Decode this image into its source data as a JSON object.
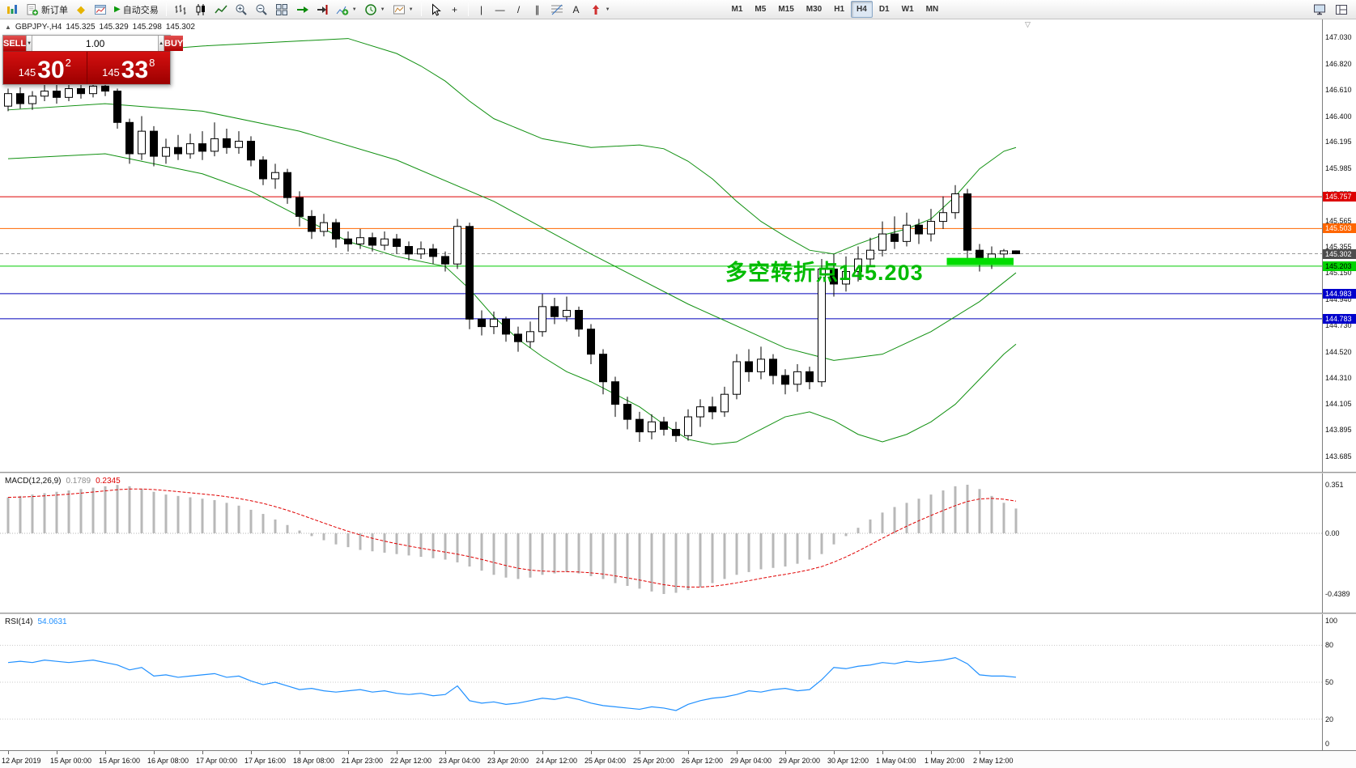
{
  "icons": {
    "oct_toggle": "▲",
    "metaeditor": "◆",
    "autoplay": "▶",
    "crosshair": "+",
    "vline": "|",
    "hline": "—",
    "trendline": "/",
    "channel": "∥",
    "text_tool": "A",
    "caret": "▼",
    "shift_marker": "▽",
    "vol_up": "▲",
    "vol_down": "▼"
  },
  "toolbar": {
    "new_order_label": "新订单",
    "autotrading_label": "自动交易",
    "timeframes": [
      "M1",
      "M5",
      "M15",
      "M30",
      "H1",
      "H4",
      "D1",
      "W1",
      "MN"
    ],
    "active_timeframe": "H4"
  },
  "oct": {
    "sell_label": "SELL",
    "buy_label": "BUY",
    "volume": "1.00",
    "sell_price_prefix": "145",
    "sell_price_big": "30",
    "sell_price_sup": "2",
    "buy_price_prefix": "145",
    "buy_price_big": "33",
    "buy_price_sup": "8"
  },
  "chart_info": {
    "symbol": "GBPJPY-,H4",
    "open": "145.325",
    "high": "145.329",
    "low": "145.298",
    "close": "145.302"
  },
  "chart_data": {
    "type": "candlestick",
    "title": "GBPJPY H4",
    "symbol": "GBPJPY",
    "timeframe": "H4",
    "price_axis_labels": [
      "147.030",
      "146.820",
      "146.610",
      "146.400",
      "146.195",
      "145.985",
      "145.775",
      "145.565",
      "145.355",
      "145.150",
      "144.940",
      "144.730",
      "144.520",
      "144.310",
      "144.105",
      "143.895",
      "143.685"
    ],
    "time_axis_labels": [
      "12 Apr 2019",
      "15 Apr 00:00",
      "15 Apr 16:00",
      "16 Apr 08:00",
      "17 Apr 00:00",
      "17 Apr 16:00",
      "18 Apr 08:00",
      "21 Apr 23:00",
      "22 Apr 12:00",
      "23 Apr 04:00",
      "23 Apr 20:00",
      "24 Apr 12:00",
      "25 Apr 04:00",
      "25 Apr 20:00",
      "26 Apr 12:00",
      "29 Apr 04:00",
      "29 Apr 20:00",
      "30 Apr 12:00",
      "1 May 04:00",
      "1 May 20:00",
      "2 May 12:00"
    ],
    "candles": [
      [
        146.48,
        146.62,
        146.44,
        146.58
      ],
      [
        146.58,
        146.63,
        146.46,
        146.5
      ],
      [
        146.5,
        146.6,
        146.45,
        146.56
      ],
      [
        146.56,
        146.65,
        146.52,
        146.6
      ],
      [
        146.6,
        146.66,
        146.5,
        146.55
      ],
      [
        146.55,
        146.68,
        146.52,
        146.62
      ],
      [
        146.62,
        146.7,
        146.54,
        146.58
      ],
      [
        146.58,
        146.72,
        146.55,
        146.64
      ],
      [
        146.64,
        146.75,
        146.56,
        146.6
      ],
      [
        146.6,
        146.62,
        146.3,
        146.35
      ],
      [
        146.35,
        146.38,
        146.02,
        146.1
      ],
      [
        146.1,
        146.4,
        146.05,
        146.28
      ],
      [
        146.28,
        146.32,
        146.0,
        146.08
      ],
      [
        146.08,
        146.22,
        146.02,
        146.15
      ],
      [
        146.15,
        146.25,
        146.05,
        146.1
      ],
      [
        146.1,
        146.26,
        146.06,
        146.18
      ],
      [
        146.18,
        146.28,
        146.05,
        146.12
      ],
      [
        146.12,
        146.35,
        146.08,
        146.22
      ],
      [
        146.22,
        146.3,
        146.1,
        146.15
      ],
      [
        146.15,
        146.28,
        146.1,
        146.2
      ],
      [
        146.2,
        146.24,
        146.0,
        146.05
      ],
      [
        146.05,
        146.08,
        145.85,
        145.9
      ],
      [
        145.9,
        146.02,
        145.82,
        145.95
      ],
      [
        145.95,
        145.98,
        145.7,
        145.75
      ],
      [
        145.75,
        145.8,
        145.52,
        145.6
      ],
      [
        145.6,
        145.65,
        145.42,
        145.48
      ],
      [
        145.48,
        145.62,
        145.44,
        145.55
      ],
      [
        145.55,
        145.58,
        145.35,
        145.42
      ],
      [
        145.42,
        145.48,
        145.32,
        145.38
      ],
      [
        145.38,
        145.5,
        145.34,
        145.43
      ],
      [
        145.43,
        145.47,
        145.32,
        145.37
      ],
      [
        145.37,
        145.48,
        145.33,
        145.42
      ],
      [
        145.42,
        145.46,
        145.3,
        145.36
      ],
      [
        145.36,
        145.4,
        145.25,
        145.3
      ],
      [
        145.3,
        145.4,
        145.26,
        145.34
      ],
      [
        145.34,
        145.38,
        145.22,
        145.28
      ],
      [
        145.28,
        145.32,
        145.16,
        145.22
      ],
      [
        145.22,
        145.58,
        145.18,
        145.52
      ],
      [
        145.52,
        145.55,
        144.7,
        144.78
      ],
      [
        144.78,
        144.85,
        144.65,
        144.72
      ],
      [
        144.72,
        144.84,
        144.66,
        144.78
      ],
      [
        144.78,
        144.8,
        144.6,
        144.66
      ],
      [
        144.66,
        144.72,
        144.52,
        144.6
      ],
      [
        144.6,
        144.76,
        144.55,
        144.68
      ],
      [
        144.68,
        144.98,
        144.64,
        144.88
      ],
      [
        144.88,
        144.95,
        144.74,
        144.8
      ],
      [
        144.8,
        144.96,
        144.76,
        144.85
      ],
      [
        144.85,
        144.88,
        144.64,
        144.7
      ],
      [
        144.7,
        144.74,
        144.42,
        144.5
      ],
      [
        144.5,
        144.54,
        144.18,
        144.28
      ],
      [
        144.28,
        144.32,
        144.0,
        144.1
      ],
      [
        144.1,
        144.16,
        143.9,
        143.98
      ],
      [
        143.98,
        144.04,
        143.8,
        143.88
      ],
      [
        143.88,
        144.02,
        143.82,
        143.96
      ],
      [
        143.96,
        144.0,
        143.85,
        143.9
      ],
      [
        143.9,
        143.96,
        143.8,
        143.85
      ],
      [
        143.85,
        144.06,
        143.81,
        144.0
      ],
      [
        144.0,
        144.14,
        143.92,
        144.08
      ],
      [
        144.08,
        144.16,
        143.98,
        144.04
      ],
      [
        144.04,
        144.24,
        144.0,
        144.18
      ],
      [
        144.18,
        144.5,
        144.14,
        144.44
      ],
      [
        144.44,
        144.54,
        144.28,
        144.36
      ],
      [
        144.36,
        144.56,
        144.3,
        144.46
      ],
      [
        144.46,
        144.5,
        144.26,
        144.33
      ],
      [
        144.33,
        144.38,
        144.18,
        144.26
      ],
      [
        144.26,
        144.42,
        144.2,
        144.36
      ],
      [
        144.36,
        144.4,
        144.22,
        144.28
      ],
      [
        144.28,
        145.26,
        144.24,
        145.18
      ],
      [
        145.18,
        145.3,
        144.96,
        145.06
      ],
      [
        145.06,
        145.28,
        145.0,
        145.16
      ],
      [
        145.16,
        145.36,
        145.08,
        145.26
      ],
      [
        145.26,
        145.43,
        145.2,
        145.33
      ],
      [
        145.33,
        145.56,
        145.28,
        145.46
      ],
      [
        145.46,
        145.6,
        145.34,
        145.4
      ],
      [
        145.4,
        145.63,
        145.36,
        145.53
      ],
      [
        145.53,
        145.58,
        145.38,
        145.46
      ],
      [
        145.46,
        145.66,
        145.4,
        145.56
      ],
      [
        145.56,
        145.76,
        145.5,
        145.63
      ],
      [
        145.63,
        145.85,
        145.58,
        145.78
      ],
      [
        145.78,
        145.82,
        145.26,
        145.33
      ],
      [
        145.33,
        145.38,
        145.16,
        145.23
      ],
      [
        145.23,
        145.36,
        145.18,
        145.3
      ],
      [
        145.3,
        145.34,
        145.22,
        145.325
      ],
      [
        145.325,
        145.329,
        145.298,
        145.302
      ]
    ],
    "bollinger": {
      "upper": [
        [
          0,
          146.82
        ],
        [
          8,
          146.9
        ],
        [
          16,
          146.96
        ],
        [
          24,
          147.0
        ],
        [
          28,
          147.02
        ],
        [
          32,
          146.9
        ],
        [
          34,
          146.8
        ],
        [
          36,
          146.68
        ],
        [
          38,
          146.52
        ],
        [
          40,
          146.38
        ],
        [
          44,
          146.22
        ],
        [
          48,
          146.15
        ],
        [
          52,
          146.17
        ],
        [
          54,
          146.14
        ],
        [
          56,
          146.04
        ],
        [
          58,
          145.9
        ],
        [
          60,
          145.72
        ],
        [
          62,
          145.56
        ],
        [
          64,
          145.44
        ],
        [
          66,
          145.33
        ],
        [
          68,
          145.3
        ],
        [
          70,
          145.38
        ],
        [
          72,
          145.45
        ],
        [
          74,
          145.5
        ],
        [
          76,
          145.58
        ],
        [
          78,
          145.76
        ],
        [
          80,
          145.98
        ],
        [
          82,
          146.12
        ],
        [
          83,
          146.15
        ]
      ],
      "middle": [
        [
          0,
          146.45
        ],
        [
          8,
          146.5
        ],
        [
          16,
          146.44
        ],
        [
          24,
          146.28
        ],
        [
          32,
          146.05
        ],
        [
          40,
          145.72
        ],
        [
          48,
          145.3
        ],
        [
          56,
          144.9
        ],
        [
          64,
          144.55
        ],
        [
          68,
          144.45
        ],
        [
          72,
          144.5
        ],
        [
          76,
          144.68
        ],
        [
          80,
          144.92
        ],
        [
          83,
          145.15
        ]
      ],
      "lower": [
        [
          0,
          146.06
        ],
        [
          8,
          146.1
        ],
        [
          16,
          145.94
        ],
        [
          20,
          145.8
        ],
        [
          24,
          145.6
        ],
        [
          28,
          145.4
        ],
        [
          32,
          145.28
        ],
        [
          36,
          145.2
        ],
        [
          38,
          145.02
        ],
        [
          40,
          144.8
        ],
        [
          42,
          144.62
        ],
        [
          44,
          144.48
        ],
        [
          46,
          144.36
        ],
        [
          48,
          144.28
        ],
        [
          50,
          144.18
        ],
        [
          52,
          144.08
        ],
        [
          54,
          143.94
        ],
        [
          56,
          143.82
        ],
        [
          58,
          143.78
        ],
        [
          60,
          143.8
        ],
        [
          62,
          143.9
        ],
        [
          64,
          144.0
        ],
        [
          66,
          144.04
        ],
        [
          68,
          143.97
        ],
        [
          70,
          143.86
        ],
        [
          72,
          143.8
        ],
        [
          74,
          143.86
        ],
        [
          76,
          143.96
        ],
        [
          78,
          144.1
        ],
        [
          80,
          144.3
        ],
        [
          82,
          144.5
        ],
        [
          83,
          144.58
        ]
      ]
    },
    "hlines": [
      {
        "price": 145.757,
        "label": "145.757",
        "color": "#dd0000",
        "tag_bg": "#dd0000",
        "tag_fg": "#ffffff",
        "style": "solid"
      },
      {
        "price": 145.503,
        "label": "145.503",
        "color": "#ff6600",
        "tag_bg": "#ff6600",
        "tag_fg": "#ffffff",
        "style": "solid"
      },
      {
        "price": 145.302,
        "label": "145.302",
        "color": "#9a9a9a",
        "tag_bg": "#4d4d4d",
        "tag_fg": "#ffffff",
        "style": "dashed"
      },
      {
        "price": 145.203,
        "label": "145.203",
        "color": "#00cc00",
        "tag_bg": "#00d300",
        "tag_fg": "#000000",
        "style": "solid"
      },
      {
        "price": 144.983,
        "label": "144.983",
        "color": "#0000bb",
        "tag_bg": "#0000cc",
        "tag_fg": "#ffffff",
        "style": "solid"
      },
      {
        "price": 144.783,
        "label": "144.783",
        "color": "#0000bb",
        "tag_bg": "#0000cc",
        "tag_fg": "#ffffff",
        "style": "solid"
      }
    ],
    "trend_highlight": {
      "price": 145.24,
      "from_index": 77.3,
      "to_index": 82.8,
      "color": "#00dd00",
      "thickness": 9
    },
    "annotation": {
      "text": "多空转折点145.203",
      "color": "#00bb00"
    },
    "macd": {
      "name": "MACD(12,26,9)",
      "value_main": "0.1789",
      "value_signal": "0.2345",
      "scale": [
        {
          "label": "0.351",
          "value": 0.351
        },
        {
          "label": "0.00",
          "value": 0
        },
        {
          "label": "-0.4389",
          "value": -0.4389
        }
      ],
      "values": [
        0.26,
        0.27,
        0.28,
        0.29,
        0.3,
        0.31,
        0.32,
        0.33,
        0.34,
        0.35,
        0.34,
        0.32,
        0.3,
        0.28,
        0.27,
        0.26,
        0.25,
        0.24,
        0.22,
        0.2,
        0.17,
        0.14,
        0.1,
        0.06,
        0.02,
        -0.02,
        -0.05,
        -0.08,
        -0.1,
        -0.12,
        -0.13,
        -0.14,
        -0.15,
        -0.16,
        -0.17,
        -0.18,
        -0.19,
        -0.21,
        -0.24,
        -0.27,
        -0.3,
        -0.32,
        -0.33,
        -0.32,
        -0.3,
        -0.29,
        -0.28,
        -0.29,
        -0.31,
        -0.33,
        -0.36,
        -0.38,
        -0.4,
        -0.42,
        -0.4389,
        -0.43,
        -0.41,
        -0.39,
        -0.36,
        -0.33,
        -0.3,
        -0.28,
        -0.26,
        -0.25,
        -0.24,
        -0.22,
        -0.19,
        -0.15,
        -0.08,
        -0.02,
        0.04,
        0.1,
        0.15,
        0.19,
        0.22,
        0.25,
        0.28,
        0.31,
        0.34,
        0.351,
        0.32,
        0.27,
        0.22,
        0.1789
      ]
    },
    "rsi": {
      "name": "RSI(14)",
      "value": "54.0631",
      "scale": [
        {
          "label": "100",
          "value": 100
        },
        {
          "label": "80",
          "value": 80
        },
        {
          "label": "50",
          "value": 50
        },
        {
          "label": "20",
          "value": 20
        },
        {
          "label": "0",
          "value": 0
        }
      ],
      "levels": [
        80,
        50,
        20
      ],
      "values": [
        66,
        67,
        66,
        68,
        67,
        66,
        67,
        68,
        66,
        64,
        60,
        62,
        55,
        56,
        54,
        55,
        56,
        57,
        54,
        55,
        51,
        48,
        50,
        47,
        44,
        45,
        43,
        42,
        43,
        44,
        42,
        43,
        41,
        40,
        41,
        39,
        40,
        47,
        35,
        33,
        34,
        32,
        33,
        35,
        37,
        36,
        38,
        36,
        33,
        31,
        30,
        29,
        28,
        30,
        29,
        27,
        32,
        35,
        37,
        38,
        40,
        43,
        42,
        44,
        45,
        43,
        44,
        52,
        62,
        61,
        63,
        64,
        66,
        65,
        67,
        66,
        67,
        68,
        70,
        65,
        56,
        55,
        55,
        54.0631
      ]
    }
  }
}
